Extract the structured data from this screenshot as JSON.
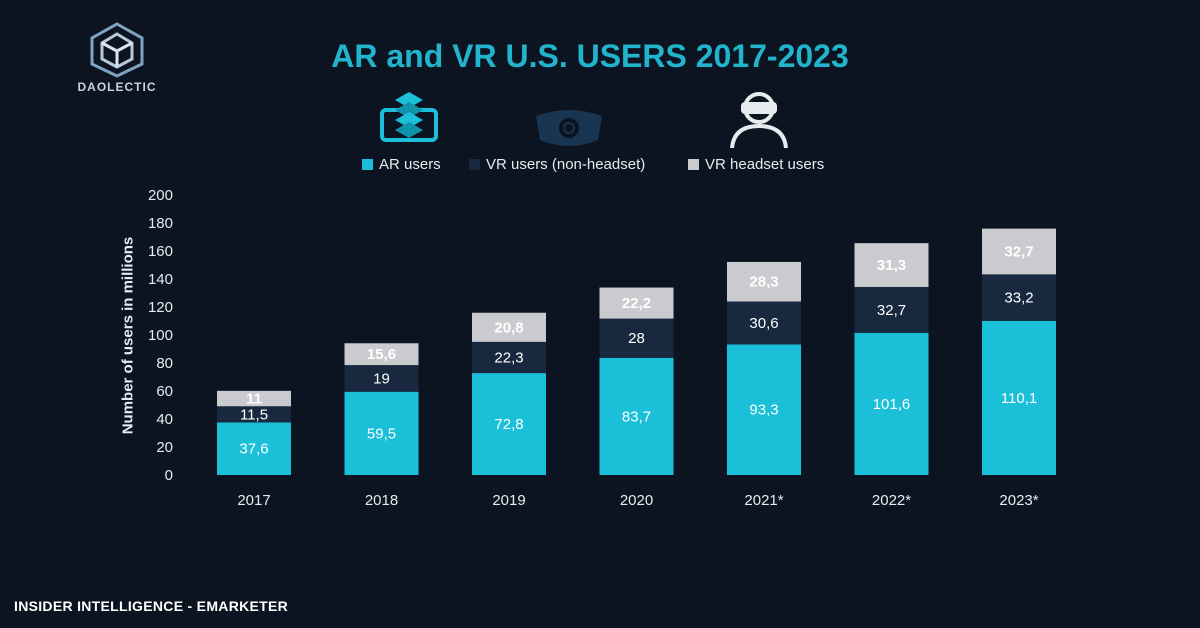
{
  "brand": {
    "name": "DAOLECTIC",
    "logo_icon": "hexagon-logo-icon"
  },
  "source": "INSIDER INTELLIGENCE - EMARKETER",
  "legend_icons": [
    "ar-layers-phone-icon",
    "vr-eye-icon",
    "vr-headset-user-icon"
  ],
  "colors": {
    "ar": "#1bbfd8",
    "vr_non_headset": "#17283f",
    "vr_headset": "#c9cbce",
    "accent": "#21b4cc",
    "background": "#0b1420"
  },
  "chart_data": {
    "type": "bar",
    "stacked": true,
    "title": "AR and VR U.S. USERS 2017-2023",
    "xlabel": "",
    "ylabel": "Number of users in millions",
    "ylim": [
      0,
      200
    ],
    "yticks": [
      0,
      20,
      40,
      60,
      80,
      100,
      120,
      140,
      160,
      180,
      200
    ],
    "grid": false,
    "legend_position": "top",
    "categories": [
      "2017",
      "2018",
      "2019",
      "2020",
      "2021*",
      "2022*",
      "2023*"
    ],
    "series": [
      {
        "name": "AR users",
        "color": "#1bbfd8",
        "values": [
          37.6,
          59.5,
          72.8,
          83.7,
          93.3,
          101.6,
          110.1
        ],
        "labels": [
          "37,6",
          "59,5",
          "72,8",
          "83,7",
          "93,3",
          "101,6",
          "110,1"
        ]
      },
      {
        "name": "VR users (non-headset)",
        "color": "#17283f",
        "values": [
          11.5,
          19,
          22.3,
          28,
          30.6,
          32.7,
          33.2
        ],
        "labels": [
          "11,5",
          "19",
          "22,3",
          "28",
          "30,6",
          "32,7",
          "33,2"
        ]
      },
      {
        "name": "VR headset users",
        "color": "#c9cbce",
        "values": [
          11,
          15.6,
          20.8,
          22.2,
          28.3,
          31.3,
          32.7
        ],
        "labels": [
          "11",
          "15,6",
          "20,8",
          "22,2",
          "28,3",
          "31,3",
          "32,7"
        ]
      }
    ]
  }
}
